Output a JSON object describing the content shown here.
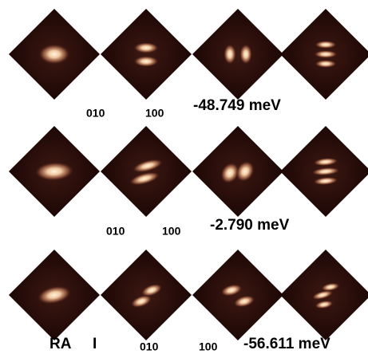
{
  "rows": [
    {
      "labels": [
        "010",
        "100"
      ],
      "energy": "-48.749 meV"
    },
    {
      "labels": [
        "010",
        "100"
      ],
      "energy": "-2.790 meV"
    },
    {
      "prefix": [
        "RA",
        "I"
      ],
      "labels": [
        "010",
        "100"
      ],
      "energy": "-56.611 meV"
    }
  ]
}
